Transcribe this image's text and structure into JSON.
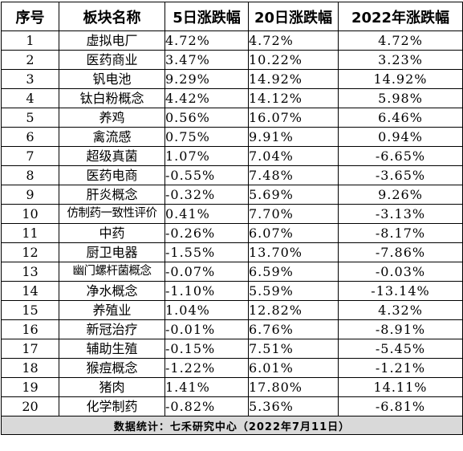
{
  "headers": [
    "序号",
    "板块名称",
    "5日涨跌幅",
    "20日涨跌幅",
    "2022年涨跌幅"
  ],
  "rows": [
    [
      "1",
      "虚拟电厂",
      "4.72%",
      "4.72%",
      "4.72%"
    ],
    [
      "2",
      "医药商业",
      "3.47%",
      "10.22%",
      "3.23%"
    ],
    [
      "3",
      "钒电池",
      "9.29%",
      "14.92%",
      "14.92%"
    ],
    [
      "4",
      "钛白粉概念",
      "4.42%",
      "14.12%",
      "5.98%"
    ],
    [
      "5",
      "养鸡",
      "0.56%",
      "16.07%",
      "6.46%"
    ],
    [
      "6",
      "禽流感",
      "0.75%",
      "9.91%",
      "0.94%"
    ],
    [
      "7",
      "超级真菌",
      "1.07%",
      "7.04%",
      "-6.65%"
    ],
    [
      "8",
      "医药电商",
      "-0.55%",
      "7.48%",
      "-3.65%"
    ],
    [
      "9",
      "肝炎概念",
      "-0.32%",
      "5.69%",
      "9.26%"
    ],
    [
      "10",
      "仿制药一致性评价",
      "0.41%",
      "7.70%",
      "-3.13%"
    ],
    [
      "11",
      "中药",
      "-0.26%",
      "6.07%",
      "-8.17%"
    ],
    [
      "12",
      "厨卫电器",
      "-1.55%",
      "13.70%",
      "-7.86%"
    ],
    [
      "13",
      "幽门螺杆菌概念",
      "-0.07%",
      "6.59%",
      "-0.03%"
    ],
    [
      "14",
      "净水概念",
      "-1.10%",
      "5.59%",
      "-13.14%"
    ],
    [
      "15",
      "养殖业",
      "1.04%",
      "12.82%",
      "4.32%"
    ],
    [
      "16",
      "新冠治疗",
      "-0.01%",
      "6.76%",
      "-8.91%"
    ],
    [
      "17",
      "辅助生殖",
      "-0.15%",
      "7.51%",
      "-5.45%"
    ],
    [
      "18",
      "猴痘概念",
      "-1.22%",
      "6.01%",
      "-1.21%"
    ],
    [
      "19",
      "猪肉",
      "1.41%",
      "17.80%",
      "14.11%"
    ],
    [
      "20",
      "化学制药",
      "-0.82%",
      "5.36%",
      "-6.81%"
    ]
  ],
  "footer": "数据统计：七禾研究中心（2022年7月11日）",
  "colors": {
    "grid": "#000000",
    "footer_bg": "#d9d9d9"
  }
}
